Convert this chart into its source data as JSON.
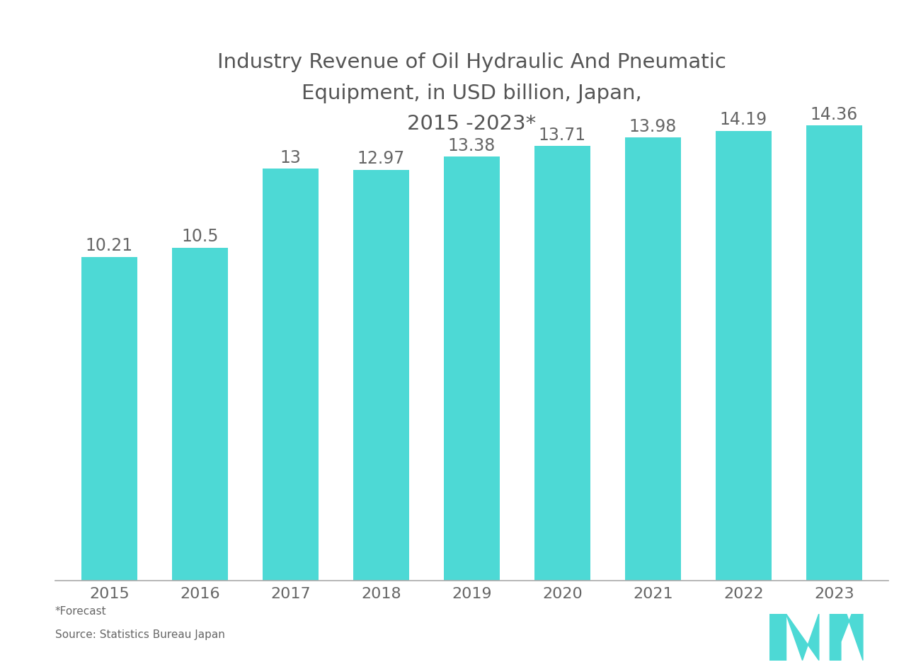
{
  "title": "Industry Revenue of Oil Hydraulic And Pneumatic\nEquipment, in USD billion, Japan,\n2015 -2023*",
  "years": [
    "2015",
    "2016",
    "2017",
    "2018",
    "2019",
    "2020",
    "2021",
    "2022",
    "2023"
  ],
  "values": [
    10.21,
    10.5,
    13,
    12.97,
    13.38,
    13.71,
    13.98,
    14.19,
    14.36
  ],
  "bar_color": "#4DD9D5",
  "background_color": "#ffffff",
  "text_color": "#666666",
  "title_color": "#555555",
  "label_color": "#666666",
  "footnote1": "*Forecast",
  "footnote2": "Source: Statistics Bureau Japan",
  "ylim": [
    0,
    15.8
  ],
  "bar_width": 0.62,
  "title_fontsize": 21,
  "tick_fontsize": 16,
  "annotation_fontsize": 17,
  "footnote_fontsize": 11
}
